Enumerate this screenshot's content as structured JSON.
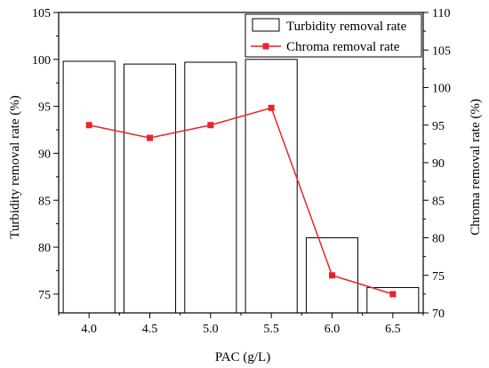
{
  "chart_data": {
    "type": "bar+line",
    "categories": [
      "4.0",
      "4.5",
      "5.0",
      "5.5",
      "6.0",
      "6.5"
    ],
    "xlabel": "PAC (g/L)",
    "ylabel_left": "Turbidity removal rate (%)",
    "ylabel_right": "Chroma removal rate (%)",
    "ylim_left": [
      73,
      105
    ],
    "ylim_right": [
      70,
      110
    ],
    "yticks_left": [
      "75",
      "80",
      "85",
      "90",
      "95",
      "100",
      "105"
    ],
    "yticks_right": [
      "70",
      "75",
      "80",
      "85",
      "90",
      "95",
      "100",
      "105",
      "110"
    ],
    "series": [
      {
        "name": "Turbidity removal rate",
        "kind": "bar",
        "axis": "left",
        "values": [
          99.8,
          99.5,
          99.7,
          100.0,
          81.0,
          75.7
        ],
        "color": "#000000",
        "fill": "#ffffff"
      },
      {
        "name": "Chroma removal rate",
        "kind": "line",
        "axis": "right",
        "values": [
          95.0,
          93.3,
          95.0,
          97.3,
          75.0,
          72.5
        ],
        "color": "#e8242a"
      }
    ],
    "legend_position": "top-right",
    "grid": false
  }
}
